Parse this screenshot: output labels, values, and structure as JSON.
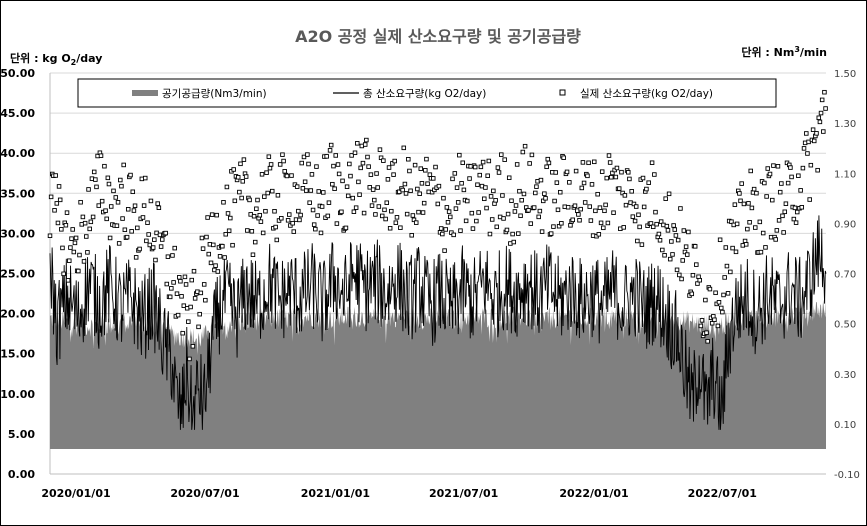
{
  "chart_data": {
    "type": "line",
    "title": "A2O 공정 실제 산소요구량 및 공기공급량",
    "left_unit": "단위 : kg O",
    "left_unit_sub": "2",
    "left_unit_tail": "/day",
    "right_unit": "단위 : Nm",
    "right_unit_sup": "3",
    "right_unit_tail": "/min",
    "y_left_range": [
      0,
      50
    ],
    "y_left_ticks": [
      "0.00",
      "5.00",
      "10.00",
      "15.00",
      "20.00",
      "25.00",
      "30.00",
      "35.00",
      "40.00",
      "45.00",
      "50.00"
    ],
    "y_right_range": [
      -0.1,
      1.5
    ],
    "y_right_ticks": [
      "-0.10",
      "0.10",
      "0.30",
      "0.50",
      "0.70",
      "0.90",
      "1.10",
      "1.30",
      "1.50"
    ],
    "x_range": [
      "2020/01/01",
      "2022/12/31"
    ],
    "x_ticks": [
      "2020/01/01",
      "2020/07/01",
      "2021/01/01",
      "2021/07/01",
      "2022/01/01",
      "2022/07/01"
    ],
    "grid": "horizontal",
    "legend_placement": "top",
    "series": [
      {
        "name": "공기공급량(Nm3/min)",
        "kind": "area",
        "axis": "right",
        "color": "#808080",
        "points": [
          [
            "2020/01/01",
            0.52
          ],
          [
            "2020/02/01",
            0.5
          ],
          [
            "2020/03/01",
            0.49
          ],
          [
            "2020/04/01",
            0.5
          ],
          [
            "2020/05/01",
            0.51
          ],
          [
            "2020/06/01",
            0.47
          ],
          [
            "2020/07/01",
            0.45
          ],
          [
            "2020/08/01",
            0.44
          ],
          [
            "2020/09/01",
            0.5
          ],
          [
            "2020/10/01",
            0.51
          ],
          [
            "2020/11/01",
            0.52
          ],
          [
            "2020/12/01",
            0.52
          ],
          [
            "2021/01/01",
            0.53
          ],
          [
            "2021/02/01",
            0.52
          ],
          [
            "2021/03/01",
            0.53
          ],
          [
            "2021/04/01",
            0.52
          ],
          [
            "2021/05/01",
            0.53
          ],
          [
            "2021/06/01",
            0.52
          ],
          [
            "2021/07/01",
            0.52
          ],
          [
            "2021/08/01",
            0.52
          ],
          [
            "2021/09/01",
            0.53
          ],
          [
            "2021/10/01",
            0.52
          ],
          [
            "2021/11/01",
            0.53
          ],
          [
            "2021/12/01",
            0.52
          ],
          [
            "2022/01/01",
            0.53
          ],
          [
            "2022/02/01",
            0.52
          ],
          [
            "2022/03/01",
            0.53
          ],
          [
            "2022/04/01",
            0.52
          ],
          [
            "2022/05/01",
            0.53
          ],
          [
            "2022/06/01",
            0.52
          ],
          [
            "2022/07/01",
            0.5
          ],
          [
            "2022/08/01",
            0.49
          ],
          [
            "2022/09/01",
            0.52
          ],
          [
            "2022/10/01",
            0.53
          ],
          [
            "2022/11/01",
            0.53
          ],
          [
            "2022/12/01",
            0.55
          ],
          [
            "2022/12/31",
            0.56
          ]
        ]
      },
      {
        "name": "총 산소요구량(kg O2/day)",
        "kind": "line",
        "axis": "left",
        "color": "#000000",
        "points": [
          [
            "2020/01/01",
            27.0
          ],
          [
            "2020/01/10",
            18.5
          ],
          [
            "2020/01/25",
            22.0
          ],
          [
            "2020/02/10",
            19.5
          ],
          [
            "2020/02/25",
            24.0
          ],
          [
            "2020/03/10",
            21.0
          ],
          [
            "2020/03/25",
            23.5
          ],
          [
            "2020/04/10",
            20.5
          ],
          [
            "2020/04/25",
            22.0
          ],
          [
            "2020/05/10",
            19.0
          ],
          [
            "2020/05/25",
            21.5
          ],
          [
            "2020/06/10",
            16.0
          ],
          [
            "2020/06/20",
            14.5
          ],
          [
            "2020/06/28",
            9.0
          ],
          [
            "2020/07/05",
            7.5
          ],
          [
            "2020/07/12",
            13.0
          ],
          [
            "2020/07/20",
            6.5
          ],
          [
            "2020/07/28",
            11.0
          ],
          [
            "2020/08/05",
            8.5
          ],
          [
            "2020/08/15",
            15.5
          ],
          [
            "2020/08/25",
            20.0
          ],
          [
            "2020/09/05",
            22.0
          ],
          [
            "2020/09/20",
            19.5
          ],
          [
            "2020/10/05",
            23.0
          ],
          [
            "2020/10/20",
            21.0
          ],
          [
            "2020/11/05",
            24.0
          ],
          [
            "2020/11/20",
            21.5
          ],
          [
            "2020/12/05",
            23.0
          ],
          [
            "2020/12/20",
            22.0
          ],
          [
            "2021/01/05",
            23.5
          ],
          [
            "2021/01/20",
            21.0
          ],
          [
            "2021/02/05",
            24.5
          ],
          [
            "2021/02/20",
            22.0
          ],
          [
            "2021/03/05",
            25.0
          ],
          [
            "2021/03/20",
            23.0
          ],
          [
            "2021/04/05",
            24.0
          ],
          [
            "2021/04/20",
            22.5
          ],
          [
            "2021/05/05",
            24.5
          ],
          [
            "2021/05/20",
            21.5
          ],
          [
            "2021/06/05",
            23.5
          ],
          [
            "2021/06/20",
            21.0
          ],
          [
            "2021/07/05",
            22.5
          ],
          [
            "2021/07/20",
            20.5
          ],
          [
            "2021/08/05",
            23.0
          ],
          [
            "2021/08/20",
            21.5
          ],
          [
            "2021/09/05",
            24.0
          ],
          [
            "2021/09/20",
            22.0
          ],
          [
            "2021/10/05",
            23.5
          ],
          [
            "2021/10/20",
            22.5
          ],
          [
            "2021/11/05",
            24.0
          ],
          [
            "2021/11/20",
            22.0
          ],
          [
            "2021/12/05",
            23.5
          ],
          [
            "2021/12/20",
            21.5
          ],
          [
            "2022/01/05",
            23.0
          ],
          [
            "2022/01/20",
            21.5
          ],
          [
            "2022/02/05",
            22.5
          ],
          [
            "2022/02/20",
            21.0
          ],
          [
            "2022/03/05",
            23.0
          ],
          [
            "2022/03/20",
            21.0
          ],
          [
            "2022/04/05",
            22.5
          ],
          [
            "2022/04/20",
            20.5
          ],
          [
            "2022/05/05",
            22.0
          ],
          [
            "2022/05/20",
            19.5
          ],
          [
            "2022/06/05",
            17.0
          ],
          [
            "2022/06/15",
            13.0
          ],
          [
            "2022/06/25",
            9.0
          ],
          [
            "2022/07/05",
            14.0
          ],
          [
            "2022/07/15",
            8.0
          ],
          [
            "2022/07/25",
            12.5
          ],
          [
            "2022/08/05",
            7.0
          ],
          [
            "2022/08/15",
            16.0
          ],
          [
            "2022/08/25",
            20.5
          ],
          [
            "2022/09/10",
            22.0
          ],
          [
            "2022/09/25",
            20.0
          ],
          [
            "2022/10/10",
            22.5
          ],
          [
            "2022/10/25",
            21.0
          ],
          [
            "2022/11/10",
            23.0
          ],
          [
            "2022/11/25",
            21.5
          ],
          [
            "2022/12/10",
            24.5
          ],
          [
            "2022/12/20",
            27.5
          ],
          [
            "2022/12/31",
            26.0
          ]
        ]
      },
      {
        "name": "실제 산소요구량(kg O2/day)",
        "kind": "scatter",
        "axis": "left",
        "color": "#000000",
        "points": [
          [
            "2020/01/01",
            34.0
          ],
          [
            "2020/01/15",
            31.0
          ],
          [
            "2020/02/01",
            27.5
          ],
          [
            "2020/02/15",
            30.0
          ],
          [
            "2020/03/01",
            33.5
          ],
          [
            "2020/03/15",
            36.5
          ],
          [
            "2020/04/01",
            32.5
          ],
          [
            "2020/04/15",
            34.5
          ],
          [
            "2020/05/01",
            31.0
          ],
          [
            "2020/05/15",
            33.0
          ],
          [
            "2020/06/01",
            29.0
          ],
          [
            "2020/06/15",
            26.0
          ],
          [
            "2020/07/01",
            22.5
          ],
          [
            "2020/07/15",
            18.0
          ],
          [
            "2020/08/01",
            24.0
          ],
          [
            "2020/08/15",
            28.5
          ],
          [
            "2020/09/01",
            31.5
          ],
          [
            "2020/09/15",
            33.0
          ],
          [
            "2020/10/01",
            34.5
          ],
          [
            "2020/10/15",
            32.0
          ],
          [
            "2020/11/01",
            35.0
          ],
          [
            "2020/11/15",
            33.5
          ],
          [
            "2020/12/01",
            36.0
          ],
          [
            "2020/12/15",
            34.0
          ],
          [
            "2021/01/01",
            35.5
          ],
          [
            "2021/01/15",
            33.5
          ],
          [
            "2021/02/01",
            37.0
          ],
          [
            "2021/02/15",
            34.5
          ],
          [
            "2021/03/01",
            36.0
          ],
          [
            "2021/03/15",
            38.0
          ],
          [
            "2021/04/01",
            35.0
          ],
          [
            "2021/04/15",
            36.5
          ],
          [
            "2021/05/01",
            34.0
          ],
          [
            "2021/05/15",
            36.0
          ],
          [
            "2021/06/01",
            33.5
          ],
          [
            "2021/06/15",
            35.5
          ],
          [
            "2021/07/01",
            34.0
          ],
          [
            "2021/07/15",
            32.0
          ],
          [
            "2021/08/01",
            35.0
          ],
          [
            "2021/08/15",
            33.5
          ],
          [
            "2021/09/01",
            36.0
          ],
          [
            "2021/09/15",
            34.0
          ],
          [
            "2021/10/01",
            35.5
          ],
          [
            "2021/10/15",
            33.0
          ],
          [
            "2021/11/01",
            36.5
          ],
          [
            "2021/11/15",
            34.5
          ],
          [
            "2021/12/01",
            35.0
          ],
          [
            "2021/12/15",
            33.5
          ],
          [
            "2022/01/01",
            36.0
          ],
          [
            "2022/01/15",
            34.0
          ],
          [
            "2022/02/01",
            35.5
          ],
          [
            "2022/02/15",
            33.0
          ],
          [
            "2022/03/01",
            36.5
          ],
          [
            "2022/03/15",
            34.5
          ],
          [
            "2022/04/01",
            35.0
          ],
          [
            "2022/04/15",
            33.0
          ],
          [
            "2022/05/01",
            34.5
          ],
          [
            "2022/05/15",
            32.0
          ],
          [
            "2022/06/01",
            30.0
          ],
          [
            "2022/06/15",
            27.0
          ],
          [
            "2022/07/01",
            24.0
          ],
          [
            "2022/07/15",
            20.5
          ],
          [
            "2022/08/01",
            23.5
          ],
          [
            "2022/08/15",
            27.5
          ],
          [
            "2022/09/01",
            31.0
          ],
          [
            "2022/09/15",
            33.0
          ],
          [
            "2022/10/01",
            32.0
          ],
          [
            "2022/10/15",
            34.5
          ],
          [
            "2022/11/01",
            33.0
          ],
          [
            "2022/11/15",
            35.5
          ],
          [
            "2022/12/01",
            37.5
          ],
          [
            "2022/12/15",
            40.5
          ],
          [
            "2022/12/25",
            44.5
          ]
        ]
      }
    ]
  }
}
